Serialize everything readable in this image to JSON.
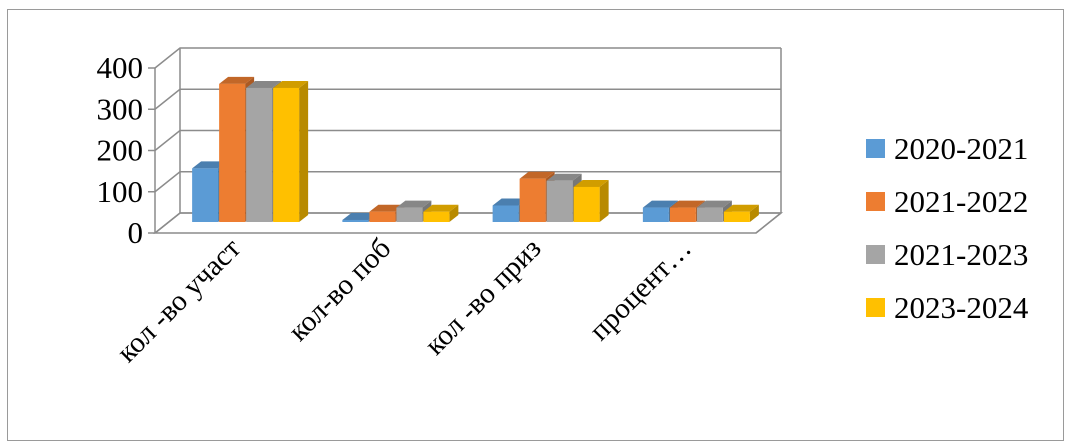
{
  "chart_data": {
    "type": "bar",
    "style": "3d-clustered-column",
    "title": "",
    "xlabel": "",
    "ylabel": "",
    "categories": [
      "кол -во участ",
      "кол-во поб",
      "кол -во приз",
      "процент…"
    ],
    "series": [
      {
        "name": "2020-2021",
        "color": "#5b9bd5",
        "values": [
          130,
          5,
          40,
          35
        ]
      },
      {
        "name": "2021-2022",
        "color": "#ed7d31",
        "values": [
          335,
          25,
          105,
          35
        ]
      },
      {
        "name": "2021-2023",
        "color": "#a5a5a5",
        "values": [
          325,
          35,
          100,
          35
        ]
      },
      {
        "name": "2023-2024",
        "color": "#ffc000",
        "values": [
          325,
          25,
          85,
          25
        ]
      }
    ],
    "ylim": [
      0,
      400
    ],
    "yticks": [
      0,
      100,
      200,
      300,
      400
    ],
    "grid": true,
    "legend_position": "right"
  }
}
